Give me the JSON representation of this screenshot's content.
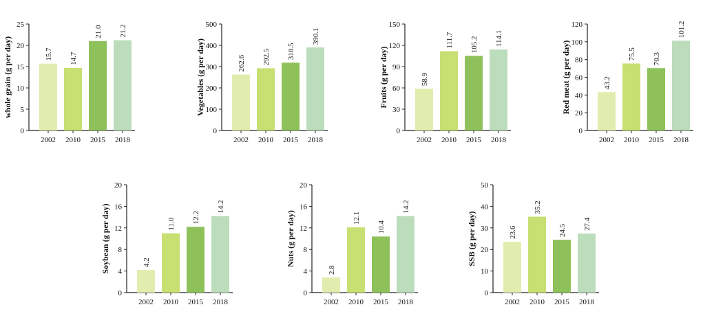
{
  "palette": [
    "#e1edae",
    "#c8df72",
    "#8fc15b",
    "#bcddbb"
  ],
  "chart_data": [
    {
      "type": "bar",
      "ylabel": "whole grain (g per day)",
      "categories": [
        "2002",
        "2010",
        "2015",
        "2018"
      ],
      "values": [
        15.7,
        14.7,
        21.0,
        21.2
      ],
      "value_labels": [
        "15.7",
        "14.7",
        "21.0",
        "21.2"
      ],
      "yticks": [
        0,
        5,
        10,
        15,
        20,
        25
      ],
      "ylim": [
        0,
        25
      ]
    },
    {
      "type": "bar",
      "ylabel": "Vegetables (g per day)",
      "categories": [
        "2002",
        "2010",
        "2015",
        "2018"
      ],
      "values": [
        262.6,
        292.5,
        318.5,
        390.1
      ],
      "value_labels": [
        "262.6",
        "292.5",
        "318.5",
        "390.1"
      ],
      "yticks": [
        0,
        100,
        200,
        300,
        400,
        500
      ],
      "ylim": [
        0,
        500
      ]
    },
    {
      "type": "bar",
      "ylabel": "Fruits (g per day)",
      "categories": [
        "2002",
        "2010",
        "2015",
        "2018"
      ],
      "values": [
        58.9,
        111.7,
        105.2,
        114.1
      ],
      "value_labels": [
        "58.9",
        "111.7",
        "105.2",
        "114.1"
      ],
      "yticks": [
        0,
        30,
        60,
        90,
        120,
        150
      ],
      "ylim": [
        0,
        150
      ]
    },
    {
      "type": "bar",
      "ylabel": "Red meat (g per day)",
      "categories": [
        "2002",
        "2010",
        "2015",
        "2018"
      ],
      "values": [
        43.2,
        75.5,
        70.3,
        101.2
      ],
      "value_labels": [
        "43.2",
        "75.5",
        "70.3",
        "101.2"
      ],
      "yticks": [
        0,
        20,
        40,
        60,
        80,
        100,
        120
      ],
      "ylim": [
        0,
        120
      ]
    },
    {
      "type": "bar",
      "ylabel": "Soybean (g per day)",
      "categories": [
        "2002",
        "2010",
        "2015",
        "2018"
      ],
      "values": [
        4.2,
        11.0,
        12.2,
        14.2
      ],
      "value_labels": [
        "4.2",
        "11.0",
        "12.2",
        "14.2"
      ],
      "yticks": [
        0,
        4,
        8,
        12,
        16,
        20
      ],
      "ylim": [
        0,
        20
      ]
    },
    {
      "type": "bar",
      "ylabel": "Nuts (g per day)",
      "categories": [
        "2002",
        "2010",
        "2015",
        "2018"
      ],
      "values": [
        2.8,
        12.1,
        10.4,
        14.2
      ],
      "value_labels": [
        "2.8",
        "12.1",
        "10.4",
        "14.2"
      ],
      "yticks": [
        0,
        4,
        8,
        12,
        16,
        20
      ],
      "ylim": [
        0,
        20
      ]
    },
    {
      "type": "bar",
      "ylabel": "SSB (g per day)",
      "categories": [
        "2002",
        "2010",
        "2015",
        "2018"
      ],
      "values": [
        23.6,
        35.2,
        24.5,
        27.4
      ],
      "value_labels": [
        "23.6",
        "35.2",
        "24.5",
        "27.4"
      ],
      "yticks": [
        0,
        10,
        20,
        30,
        40,
        50
      ],
      "ylim": [
        0,
        50
      ]
    }
  ]
}
